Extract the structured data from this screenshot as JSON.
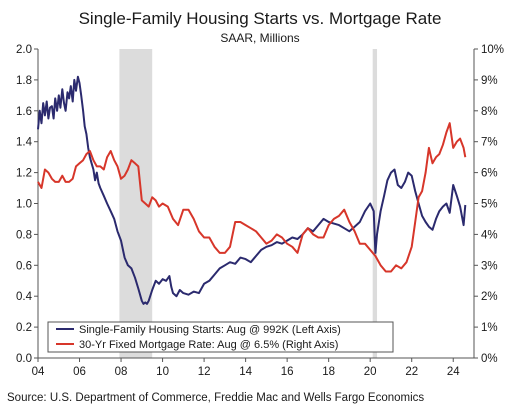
{
  "chart_data": {
    "type": "line",
    "title": "Single-Family Housing Starts vs. Mortgage Rate",
    "subtitle": "SAAR, Millions",
    "source": "Source: U.S. Department of Commerce, Freddie Mac and Wells Fargo Economics",
    "x_axis": {
      "range": [
        2004,
        2025
      ],
      "ticks": [
        2004,
        2006,
        2008,
        2010,
        2012,
        2014,
        2016,
        2018,
        2020,
        2022,
        2024
      ],
      "tick_labels": [
        "04",
        "06",
        "08",
        "10",
        "12",
        "14",
        "16",
        "18",
        "20",
        "22",
        "24"
      ]
    },
    "y_left": {
      "range": [
        0,
        2.0
      ],
      "ticks": [
        0,
        0.2,
        0.4,
        0.6,
        0.8,
        1.0,
        1.2,
        1.4,
        1.6,
        1.8,
        2.0
      ],
      "tick_labels": [
        "0.0",
        "0.2",
        "0.4",
        "0.6",
        "0.8",
        "1.0",
        "1.2",
        "1.4",
        "1.6",
        "1.8",
        "2.0"
      ]
    },
    "y_right": {
      "range": [
        0,
        10
      ],
      "ticks": [
        0,
        1,
        2,
        3,
        4,
        5,
        6,
        7,
        8,
        9,
        10
      ],
      "tick_labels": [
        "0%",
        "1%",
        "2%",
        "3%",
        "4%",
        "5%",
        "6%",
        "7%",
        "8%",
        "9%",
        "10%"
      ]
    },
    "recessions": [
      [
        2007.92,
        2009.5
      ],
      [
        2020.12,
        2020.33
      ]
    ],
    "grid": false,
    "legend_position": "bottom-left",
    "series": [
      {
        "name": "Single-Family Housing Starts: Aug @ 992K (Left Axis)",
        "axis": "left",
        "color": "#2b2a6e",
        "x": [
          2004.0,
          2004.08,
          2004.17,
          2004.25,
          2004.33,
          2004.42,
          2004.5,
          2004.58,
          2004.67,
          2004.75,
          2004.83,
          2004.92,
          2005.0,
          2005.08,
          2005.17,
          2005.25,
          2005.33,
          2005.42,
          2005.5,
          2005.58,
          2005.67,
          2005.75,
          2005.83,
          2005.92,
          2006.0,
          2006.08,
          2006.17,
          2006.25,
          2006.33,
          2006.42,
          2006.5,
          2006.58,
          2006.67,
          2006.75,
          2006.83,
          2006.92,
          2007.0,
          2007.17,
          2007.33,
          2007.5,
          2007.67,
          2007.83,
          2008.0,
          2008.17,
          2008.33,
          2008.5,
          2008.67,
          2008.83,
          2009.0,
          2009.08,
          2009.17,
          2009.25,
          2009.33,
          2009.5,
          2009.67,
          2009.83,
          2010.0,
          2010.17,
          2010.33,
          2010.42,
          2010.5,
          2010.67,
          2010.83,
          2011.0,
          2011.25,
          2011.5,
          2011.75,
          2012.0,
          2012.25,
          2012.5,
          2012.75,
          2013.0,
          2013.25,
          2013.5,
          2013.75,
          2014.0,
          2014.25,
          2014.5,
          2014.75,
          2015.0,
          2015.25,
          2015.5,
          2015.75,
          2016.0,
          2016.25,
          2016.5,
          2016.75,
          2017.0,
          2017.25,
          2017.5,
          2017.75,
          2018.0,
          2018.25,
          2018.5,
          2018.75,
          2019.0,
          2019.25,
          2019.5,
          2019.75,
          2020.0,
          2020.17,
          2020.25,
          2020.33,
          2020.5,
          2020.67,
          2020.83,
          2021.0,
          2021.17,
          2021.33,
          2021.5,
          2021.67,
          2021.83,
          2022.0,
          2022.17,
          2022.33,
          2022.5,
          2022.67,
          2022.83,
          2023.0,
          2023.17,
          2023.33,
          2023.5,
          2023.67,
          2023.83,
          2024.0,
          2024.17,
          2024.33,
          2024.5,
          2024.58
        ],
        "values": [
          1.48,
          1.6,
          1.52,
          1.65,
          1.57,
          1.66,
          1.55,
          1.62,
          1.63,
          1.55,
          1.68,
          1.6,
          1.7,
          1.62,
          1.74,
          1.65,
          1.6,
          1.72,
          1.68,
          1.76,
          1.66,
          1.8,
          1.73,
          1.82,
          1.78,
          1.7,
          1.6,
          1.5,
          1.45,
          1.36,
          1.3,
          1.26,
          1.22,
          1.15,
          1.2,
          1.13,
          1.1,
          1.05,
          1.0,
          0.95,
          0.9,
          0.82,
          0.76,
          0.65,
          0.6,
          0.58,
          0.52,
          0.45,
          0.37,
          0.35,
          0.36,
          0.35,
          0.37,
          0.44,
          0.5,
          0.48,
          0.51,
          0.5,
          0.53,
          0.46,
          0.42,
          0.4,
          0.44,
          0.42,
          0.41,
          0.43,
          0.42,
          0.48,
          0.5,
          0.54,
          0.58,
          0.6,
          0.62,
          0.61,
          0.65,
          0.64,
          0.62,
          0.66,
          0.7,
          0.72,
          0.73,
          0.75,
          0.74,
          0.76,
          0.78,
          0.77,
          0.8,
          0.84,
          0.82,
          0.86,
          0.9,
          0.88,
          0.87,
          0.86,
          0.84,
          0.82,
          0.85,
          0.88,
          0.95,
          1.0,
          0.95,
          0.68,
          0.8,
          0.95,
          1.05,
          1.15,
          1.2,
          1.22,
          1.12,
          1.1,
          1.14,
          1.2,
          1.18,
          1.08,
          1.0,
          0.92,
          0.88,
          0.85,
          0.83,
          0.9,
          0.95,
          0.98,
          1.0,
          0.94,
          1.12,
          1.05,
          0.98,
          0.86,
          0.99
        ]
      },
      {
        "name": "30-Yr Fixed Mortgage Rate: Aug @ 6.5% (Right Axis)",
        "axis": "right",
        "color": "#d7362a",
        "x": [
          2004.0,
          2004.17,
          2004.33,
          2004.5,
          2004.67,
          2004.83,
          2005.0,
          2005.17,
          2005.33,
          2005.5,
          2005.67,
          2005.83,
          2006.0,
          2006.17,
          2006.33,
          2006.5,
          2006.67,
          2006.83,
          2007.0,
          2007.17,
          2007.33,
          2007.5,
          2007.67,
          2007.83,
          2008.0,
          2008.17,
          2008.33,
          2008.5,
          2008.67,
          2008.83,
          2009.0,
          2009.17,
          2009.33,
          2009.5,
          2009.67,
          2009.83,
          2010.0,
          2010.25,
          2010.5,
          2010.75,
          2011.0,
          2011.25,
          2011.5,
          2011.75,
          2012.0,
          2012.25,
          2012.5,
          2012.75,
          2013.0,
          2013.25,
          2013.5,
          2013.75,
          2014.0,
          2014.25,
          2014.5,
          2014.75,
          2015.0,
          2015.25,
          2015.5,
          2015.75,
          2016.0,
          2016.25,
          2016.5,
          2016.75,
          2017.0,
          2017.25,
          2017.5,
          2017.75,
          2018.0,
          2018.25,
          2018.5,
          2018.75,
          2019.0,
          2019.25,
          2019.5,
          2019.75,
          2020.0,
          2020.25,
          2020.5,
          2020.75,
          2021.0,
          2021.25,
          2021.5,
          2021.75,
          2022.0,
          2022.17,
          2022.33,
          2022.5,
          2022.67,
          2022.83,
          2023.0,
          2023.17,
          2023.33,
          2023.5,
          2023.67,
          2023.83,
          2024.0,
          2024.17,
          2024.33,
          2024.5,
          2024.58
        ],
        "values": [
          5.7,
          5.5,
          6.1,
          6.0,
          5.8,
          5.7,
          5.7,
          5.9,
          5.7,
          5.7,
          5.8,
          6.2,
          6.3,
          6.4,
          6.6,
          6.7,
          6.4,
          6.2,
          6.2,
          6.1,
          6.5,
          6.7,
          6.4,
          6.2,
          5.8,
          5.9,
          6.1,
          6.4,
          6.3,
          6.2,
          5.1,
          5.0,
          4.9,
          5.2,
          5.1,
          4.9,
          5.0,
          4.9,
          4.5,
          4.3,
          4.8,
          4.8,
          4.5,
          4.1,
          3.9,
          3.9,
          3.6,
          3.4,
          3.4,
          3.6,
          4.4,
          4.4,
          4.3,
          4.2,
          4.1,
          3.9,
          3.7,
          3.8,
          4.0,
          3.9,
          3.7,
          3.6,
          3.4,
          4.0,
          4.2,
          4.0,
          3.9,
          3.9,
          4.3,
          4.5,
          4.6,
          4.8,
          4.4,
          4.1,
          3.7,
          3.7,
          3.5,
          3.3,
          3.0,
          2.8,
          2.8,
          3.0,
          2.9,
          3.1,
          3.6,
          4.4,
          5.2,
          5.4,
          6.0,
          6.8,
          6.3,
          6.5,
          6.6,
          6.9,
          7.3,
          7.6,
          6.8,
          7.0,
          7.1,
          6.8,
          6.5
        ]
      }
    ]
  }
}
